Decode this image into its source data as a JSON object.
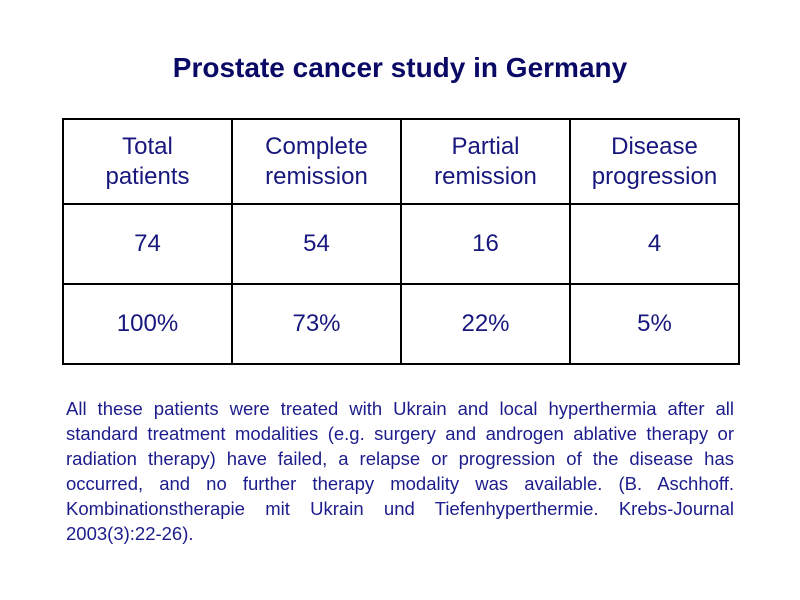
{
  "slide": {
    "title": "Prostate cancer study in Germany"
  },
  "table": {
    "headers": [
      {
        "line1": "Total",
        "line2": "patients"
      },
      {
        "line1": "Complete",
        "line2": "remission"
      },
      {
        "line1": "Partial",
        "line2": "remission"
      },
      {
        "line1": "Disease",
        "line2": "progression"
      }
    ],
    "counts": [
      "74",
      "54",
      "16",
      "4"
    ],
    "percentages": [
      "100%",
      "73%",
      "22%",
      "5%"
    ]
  },
  "footnote": "All these patients were treated with Ukrain and local hyperthermia after all standard treatment modalities (e.g. surgery and androgen ablative therapy or radiation therapy) have failed, a relapse or progression of the disease has occurred, and no further therapy modality was available. (B. Aschhoff. Kombinationstherapie mit Ukrain und Tiefenhyperthermie. Krebs-Journal 2003(3):22-26).",
  "colors": {
    "title_text": "#0a0a66",
    "table_text": "#17177d",
    "footnote_text": "#1c1c8c",
    "table_border": "#000000",
    "background": "#ffffff"
  }
}
